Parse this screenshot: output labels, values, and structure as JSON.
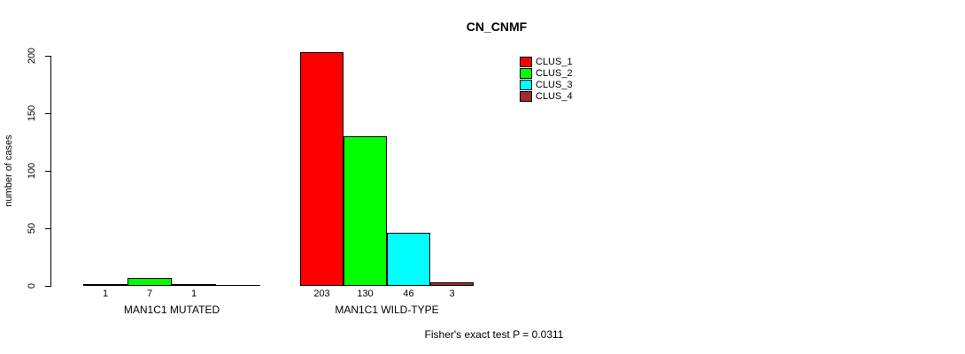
{
  "chart_data": {
    "type": "bar",
    "title": "CN_CNMF",
    "ylabel": "number of cases",
    "xlabel": "",
    "ylim": [
      0,
      200
    ],
    "yticks": [
      0,
      50,
      100,
      150,
      200
    ],
    "grid": false,
    "legend_position": "top-right",
    "categories": [
      "MAN1C1 MUTATED",
      "MAN1C1 WILD-TYPE"
    ],
    "series": [
      {
        "name": "CLUS_1",
        "color": "#FF0000",
        "values": [
          1,
          203
        ]
      },
      {
        "name": "CLUS_2",
        "color": "#00FF00",
        "values": [
          7,
          130
        ]
      },
      {
        "name": "CLUS_3",
        "color": "#00FFFF",
        "values": [
          1,
          46
        ]
      },
      {
        "name": "CLUS_4",
        "color": "#A52A2A",
        "values": [
          0,
          3
        ]
      }
    ],
    "bar_value_labels": [
      [
        "1",
        "7",
        "1",
        ""
      ],
      [
        "203",
        "130",
        "46",
        "3"
      ]
    ],
    "footnote": "Fisher's exact test P = 0.0311",
    "axis_color": "#000000",
    "bar_border_color": "#000000"
  }
}
